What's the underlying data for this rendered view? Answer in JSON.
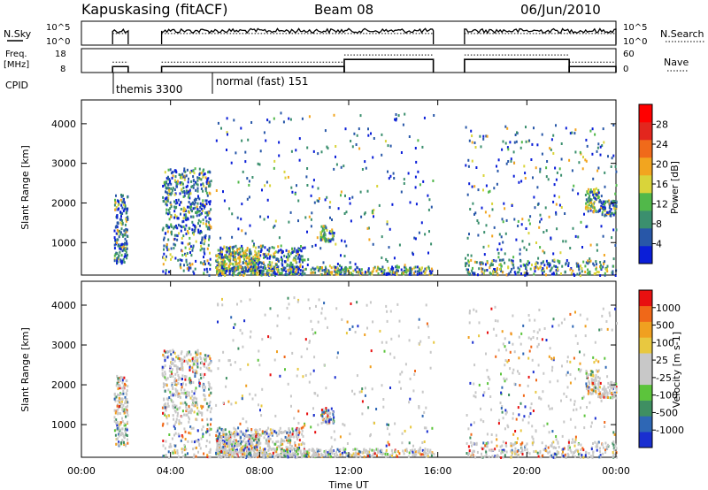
{
  "header": {
    "station": "Kapuskasing (fitACF)",
    "beam": "Beam 08",
    "date": "06/Jun/2010"
  },
  "chart_data": {
    "type": "heatmap",
    "time_ticks": [
      "00:00",
      "04:00",
      "08:00",
      "12:00",
      "16:00",
      "20:00",
      "00:00"
    ],
    "time_range_hours": [
      0,
      24
    ],
    "xlabel": "Time UT",
    "panels": {
      "nsky": {
        "label": "N.Sky",
        "right_label": "N.Search",
        "left_ticks": [
          "10^5",
          "10^0"
        ],
        "right_ticks": [
          "10^5",
          "10^0"
        ],
        "segments": [
          [
            1.4,
            2.1
          ],
          [
            3.6,
            15.8
          ],
          [
            17.2,
            24.0
          ]
        ],
        "level": 0.45
      },
      "freq": {
        "label_line1": "Freq.",
        "label_line2": "[MHz]",
        "right_label": "Nave",
        "left_ticks": [
          18,
          8
        ],
        "right_ticks": [
          60,
          0
        ],
        "steps": [
          {
            "t0": 1.4,
            "t1": 2.1,
            "freq": 10.5
          },
          {
            "t0": 3.6,
            "t1": 11.8,
            "freq": 10.5
          },
          {
            "t0": 11.8,
            "t1": 15.8,
            "freq": 13.5
          },
          {
            "t0": 17.2,
            "t1": 21.9,
            "freq": 13.5
          },
          {
            "t0": 21.9,
            "t1": 24.0,
            "freq": 10.5
          }
        ]
      },
      "cpid": {
        "label": "CPID",
        "entries": [
          {
            "t": 1.4,
            "text": "themis 3300"
          },
          {
            "t": 6.0,
            "text": "normal (fast) 151"
          }
        ]
      },
      "power": {
        "ylabel": "Slant Range [km]",
        "yticks": [
          1000,
          2000,
          3000,
          4000
        ],
        "ylim": [
          180,
          4600
        ],
        "colorbar_label": "Power [dB]",
        "colorbar_ticks": [
          "28",
          "24",
          "20",
          "16",
          "12",
          "8",
          "4"
        ],
        "colors": [
          "#0a1ed8",
          "#2857a8",
          "#3b8f6e",
          "#51b84a",
          "#d9d43a",
          "#f2a51f",
          "#f06a1a",
          "#e3261e",
          "#ff0000"
        ]
      },
      "velocity": {
        "ylabel": "Slant Range [km]",
        "yticks": [
          1000,
          2000,
          3000,
          4000
        ],
        "ylim": [
          180,
          4600
        ],
        "colorbar_label": "Velocity [m s-1]",
        "colorbar_ticks": [
          "1000",
          "500",
          "100",
          "25",
          "-25",
          "-100",
          "-500",
          "-1000"
        ],
        "colors": [
          "#1a2fd0",
          "#2e67b5",
          "#3f8f62",
          "#5cc43c",
          "#c8c8c8",
          "#c8c8c8",
          "#e8c840",
          "#f0a020",
          "#f06818",
          "#e81010"
        ]
      }
    },
    "scatter_regions": [
      {
        "t0": 1.45,
        "t1": 2.05,
        "r0": 500,
        "r1": 2250,
        "n": 170,
        "p": 0.25
      },
      {
        "t0": 3.6,
        "t1": 5.8,
        "r0": 1250,
        "r1": 2900,
        "n": 380,
        "p": 0.22
      },
      {
        "t0": 3.6,
        "t1": 5.8,
        "r0": 200,
        "r1": 1250,
        "n": 120,
        "p": 0.35
      },
      {
        "t0": 6.0,
        "t1": 10.0,
        "r0": 200,
        "r1": 950,
        "n": 360,
        "p": 0.45
      },
      {
        "t0": 6.0,
        "t1": 8.0,
        "r0": 300,
        "r1": 800,
        "n": 140,
        "p": 0.72
      },
      {
        "t0": 6.0,
        "t1": 15.8,
        "r0": 220,
        "r1": 420,
        "n": 380,
        "p": 0.4
      },
      {
        "t0": 10.7,
        "t1": 11.3,
        "r0": 1050,
        "r1": 1450,
        "n": 60,
        "p": 0.55
      },
      {
        "t0": 6.0,
        "t1": 15.8,
        "r0": 400,
        "r1": 4300,
        "n": 260,
        "p": 0.2
      },
      {
        "t0": 17.2,
        "t1": 24.0,
        "r0": 200,
        "r1": 4000,
        "n": 300,
        "p": 0.22
      },
      {
        "t0": 22.6,
        "t1": 23.2,
        "r0": 1800,
        "r1": 2400,
        "n": 70,
        "p": 0.55
      },
      {
        "t0": 23.2,
        "t1": 24.0,
        "r0": 1700,
        "r1": 2100,
        "n": 70,
        "p": 0.38
      },
      {
        "t0": 17.2,
        "t1": 24.0,
        "r0": 200,
        "r1": 600,
        "n": 220,
        "p": 0.35
      }
    ]
  }
}
